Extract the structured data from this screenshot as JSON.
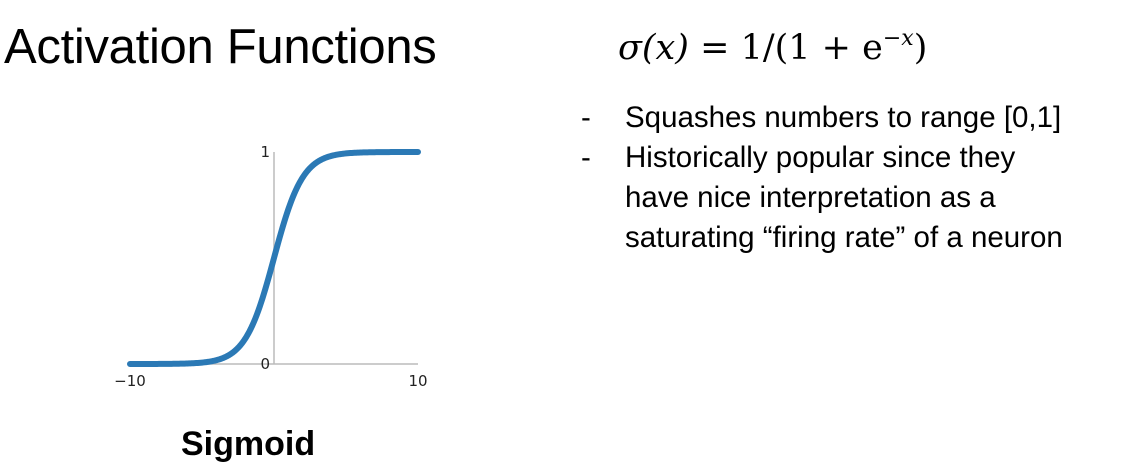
{
  "slide": {
    "title": "Activation Functions",
    "formula": {
      "lhs": "σ(x)",
      "equals": "=",
      "rhs": "1/(1 + e",
      "exponent": "−x",
      "close": ")"
    },
    "bullets": [
      {
        "marker": "-",
        "lines": [
          "Squashes numbers to range [0,1]"
        ]
      },
      {
        "marker": "-",
        "lines": [
          "Historically popular since they",
          "have nice interpretation as a",
          "saturating “firing rate” of a neuron"
        ]
      }
    ]
  },
  "chart_data": {
    "type": "line",
    "function": "sigmoid",
    "title": "",
    "caption": "Sigmoid",
    "xlim": [
      -10,
      10
    ],
    "ylim": [
      0,
      1
    ],
    "x_ticks": [
      {
        "value": -10,
        "label": "−10"
      },
      {
        "value": 10,
        "label": "10"
      }
    ],
    "y_ticks": [
      {
        "value": 0,
        "label": "0"
      },
      {
        "value": 1,
        "label": "1"
      }
    ],
    "grid": false,
    "line_color": "#2b79b5",
    "series": [
      {
        "x": [
          -10,
          -8,
          -6,
          -5,
          -4,
          -3,
          -2,
          -1,
          0,
          1,
          2,
          3,
          4,
          5,
          6,
          8,
          10
        ],
        "y": [
          0.0,
          0.0003,
          0.0025,
          0.0067,
          0.018,
          0.047,
          0.119,
          0.269,
          0.5,
          0.731,
          0.881,
          0.953,
          0.982,
          0.993,
          0.9975,
          0.9997,
          1.0
        ]
      }
    ]
  }
}
